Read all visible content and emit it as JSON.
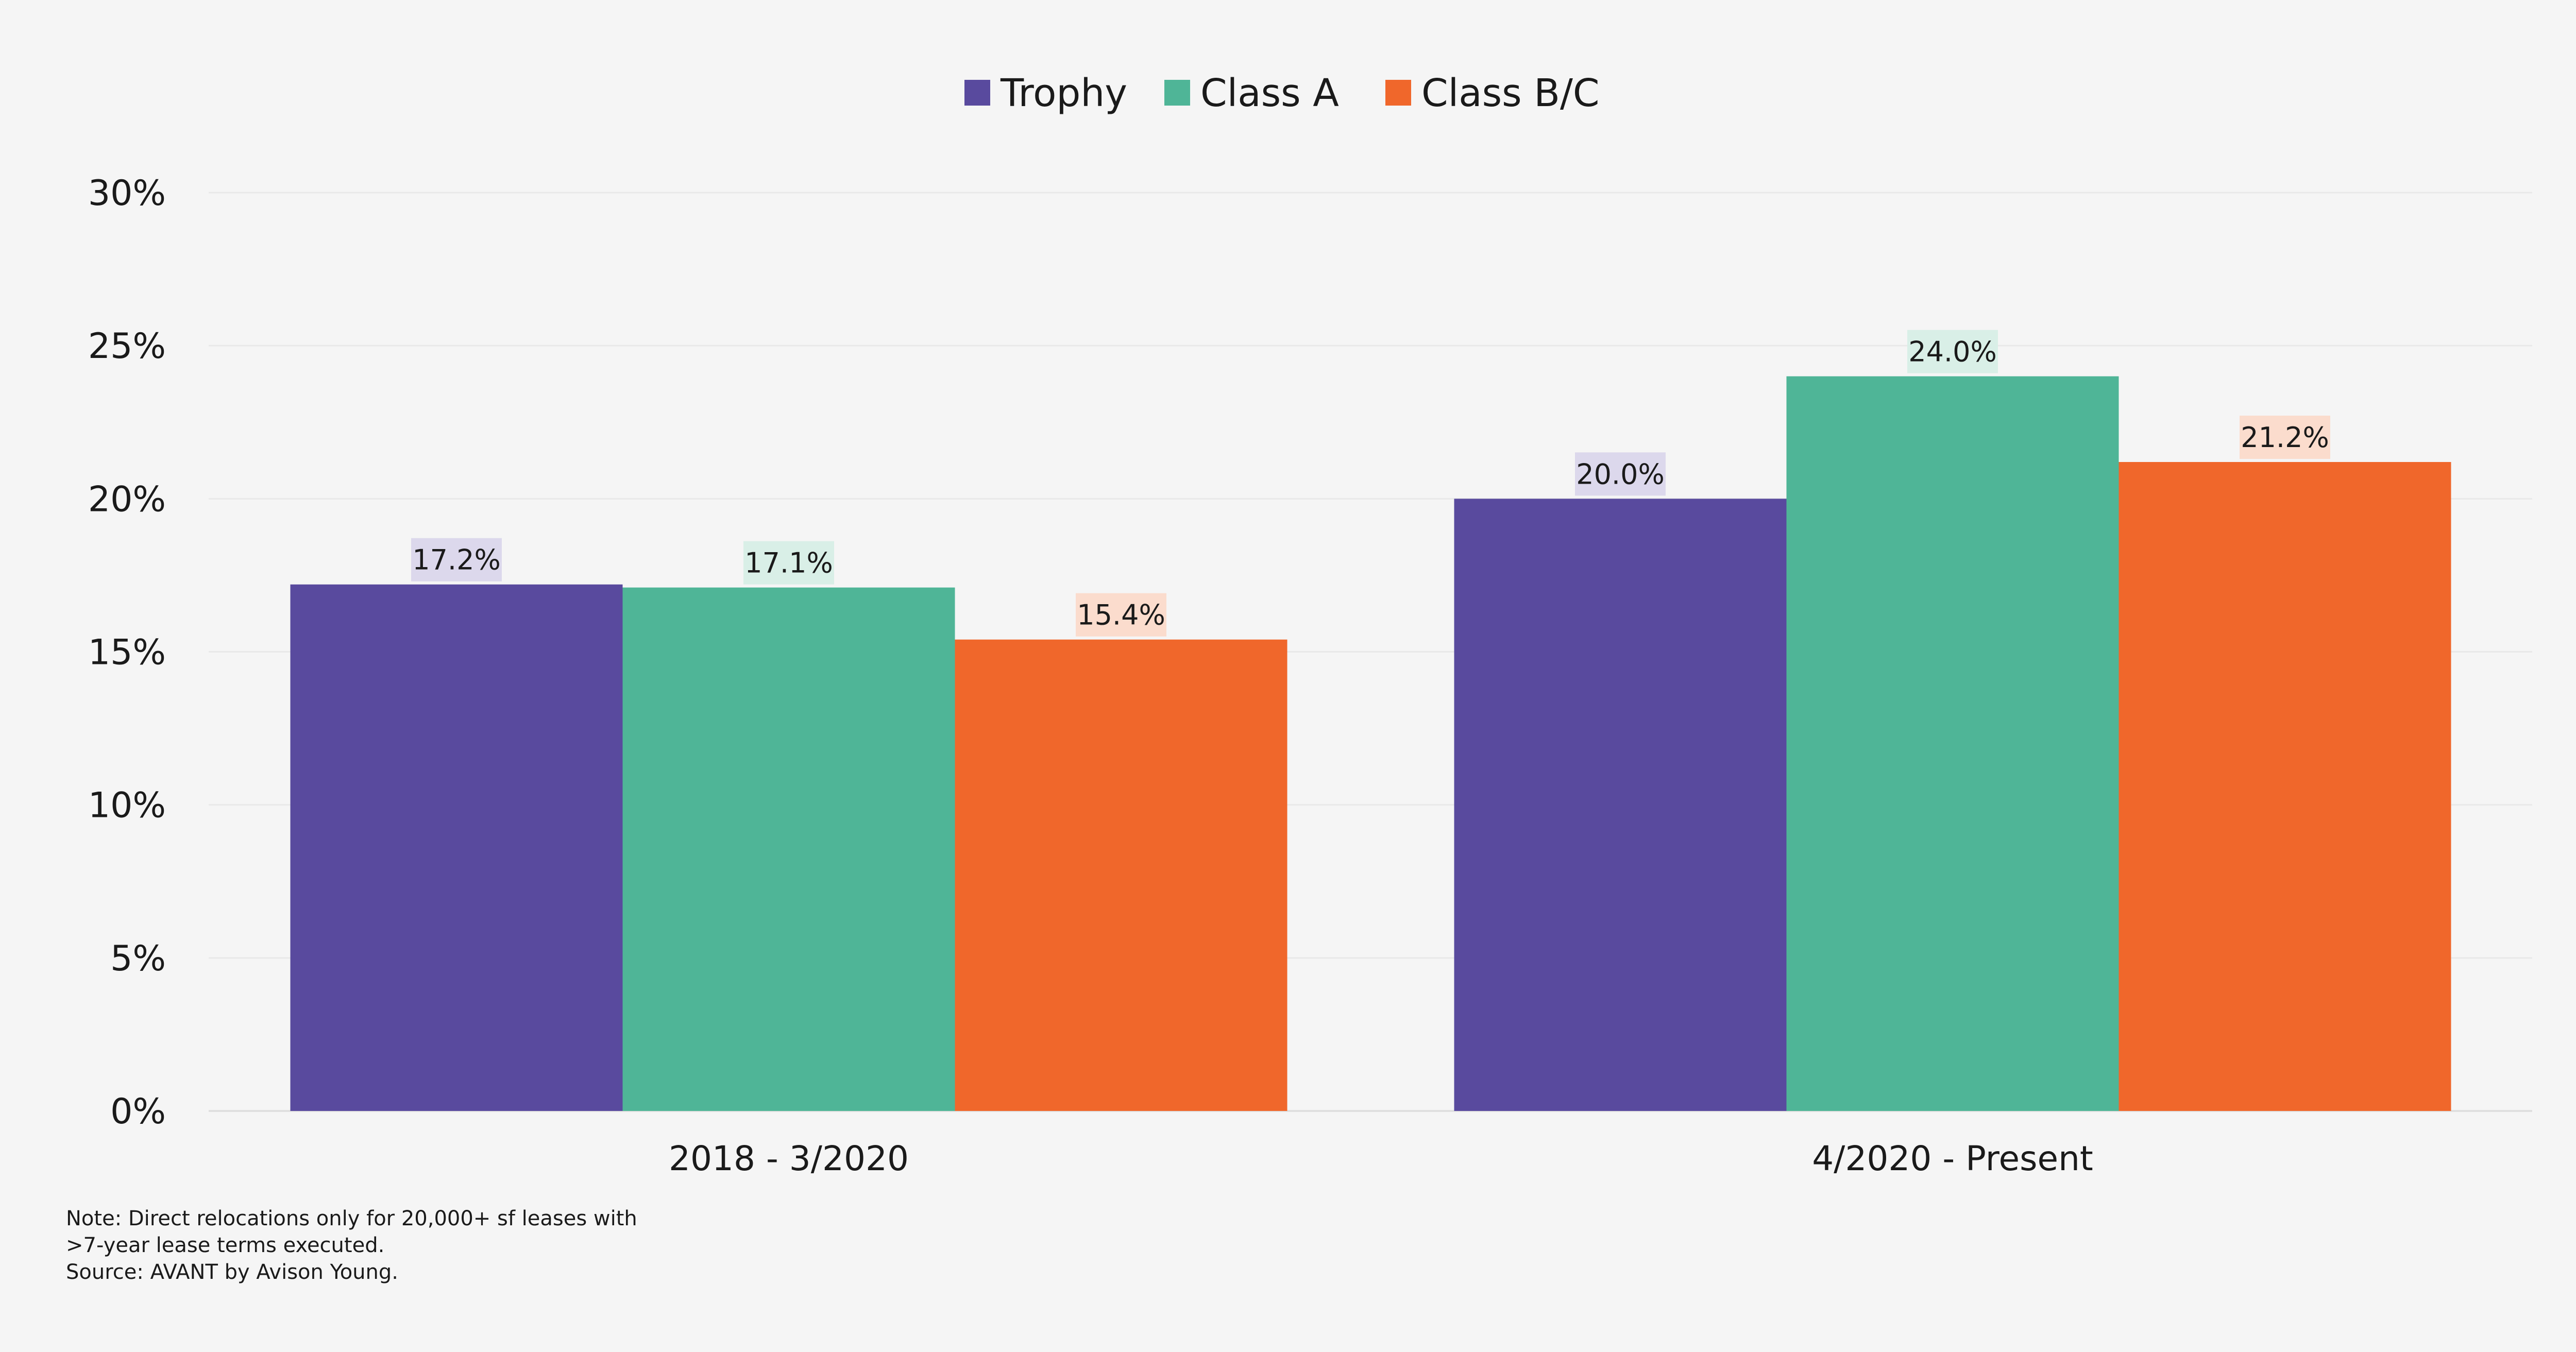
{
  "chart_data": {
    "type": "bar",
    "categories": [
      "2018 - 3/2020",
      "4/2020 - Present"
    ],
    "series": [
      {
        "name": "Trophy",
        "color": "#594a9e",
        "label_bg": "#dcd8ec",
        "values": [
          17.2,
          20.0
        ],
        "labels": [
          "17.2%",
          "20.0%"
        ]
      },
      {
        "name": "Class A",
        "color": "#4fb597",
        "label_bg": "#d9efe7",
        "values": [
          17.1,
          24.0
        ],
        "labels": [
          "17.1%",
          "24.0%"
        ]
      },
      {
        "name": "Class B/C",
        "color": "#f0672b",
        "label_bg": "#fbdccd",
        "values": [
          15.4,
          21.2
        ],
        "labels": [
          "15.4%",
          "21.2%"
        ]
      }
    ],
    "ylim": [
      0,
      30
    ],
    "yticks": [
      0,
      5,
      10,
      15,
      20,
      25,
      30
    ],
    "ytick_labels": [
      "0%",
      "5%",
      "10%",
      "15%",
      "20%",
      "25%",
      "30%"
    ],
    "title": "",
    "xlabel": "",
    "ylabel": "",
    "legend_position": "top-center",
    "grid": true
  },
  "notes": {
    "line1": "Note: Direct relocations only for 20,000+ sf leases with",
    "line2": ">7-year lease terms executed.",
    "line3": "Source: AVANT by Avison Young."
  }
}
